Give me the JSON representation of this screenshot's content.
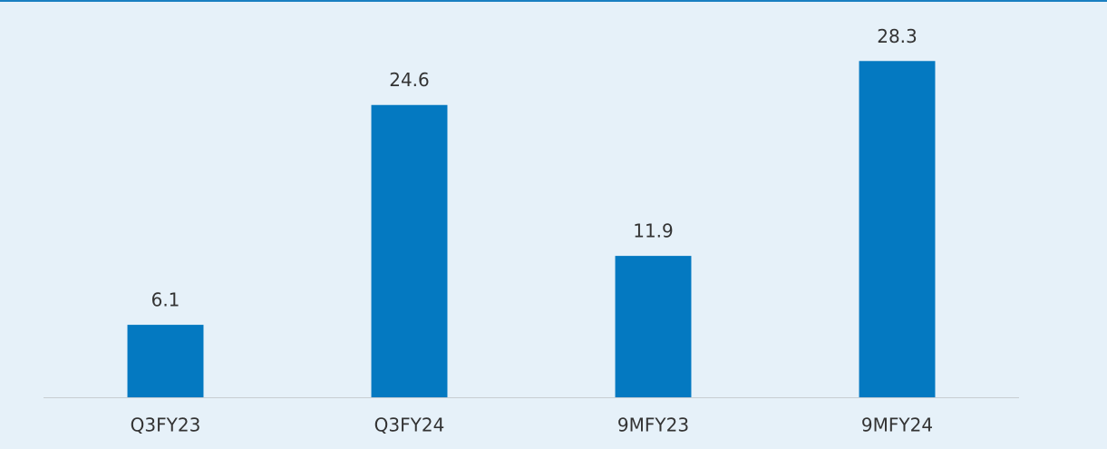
{
  "chart_data": {
    "type": "bar",
    "categories": [
      "Q3FY23",
      "Q3FY24",
      "9MFY23",
      "9MFY24"
    ],
    "values": [
      6.1,
      24.6,
      11.9,
      28.3
    ],
    "color": "#0479c1",
    "ylim": [
      0,
      30
    ]
  }
}
